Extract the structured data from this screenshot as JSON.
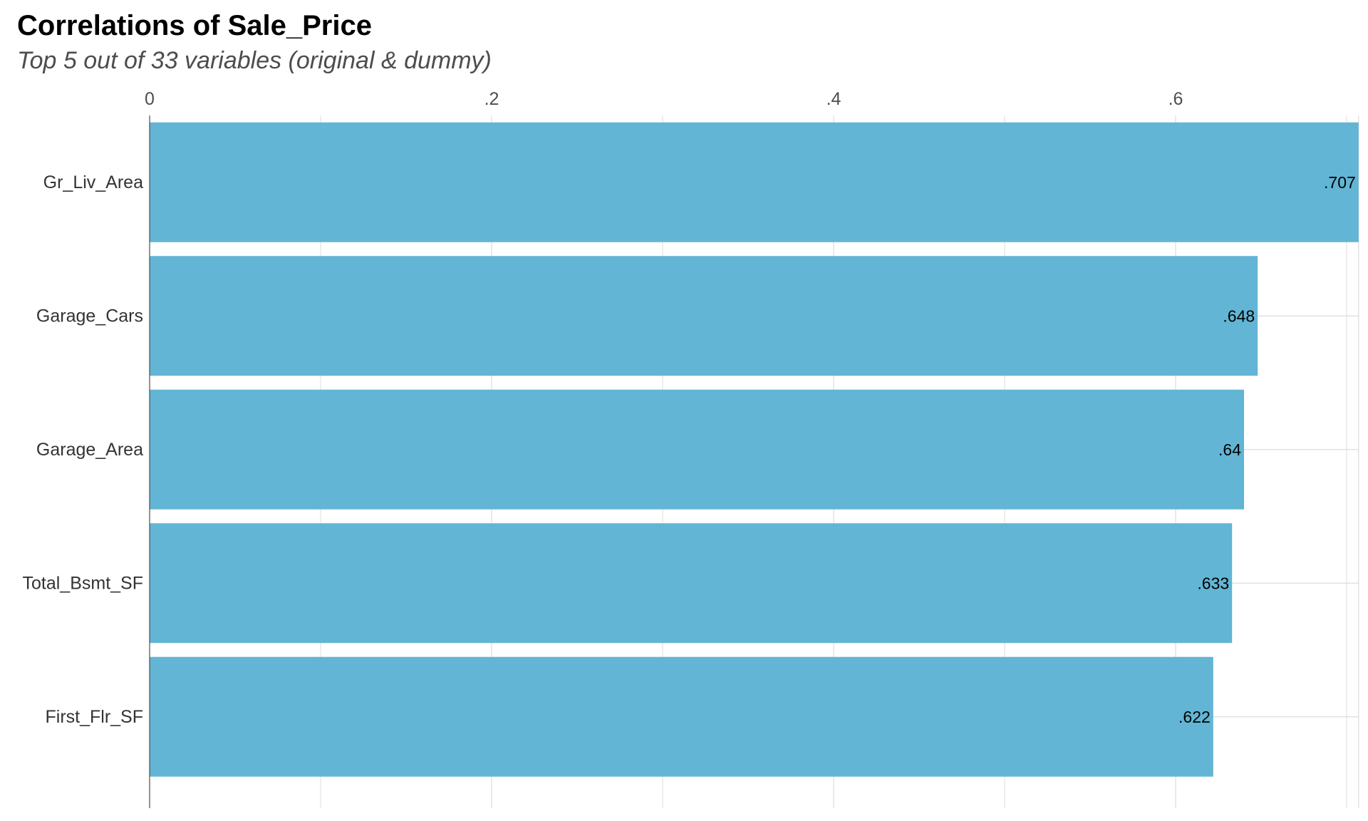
{
  "chart_data": {
    "type": "bar",
    "orientation": "horizontal",
    "title": "Correlations of Sale_Price",
    "subtitle": "Top 5 out of 33 variables (original & dummy)",
    "categories": [
      "Gr_Liv_Area",
      "Garage_Cars",
      "Garage_Area",
      "Total_Bsmt_SF",
      "First_Flr_SF"
    ],
    "values": [
      0.707,
      0.648,
      0.64,
      0.633,
      0.622
    ],
    "value_labels": [
      ".707",
      ".648",
      ".64",
      ".633",
      ".622"
    ],
    "x_ticks": [
      0,
      0.2,
      0.4,
      0.6
    ],
    "x_tick_labels": [
      "0",
      ".2",
      ".4",
      ".6"
    ],
    "xlim": [
      0,
      0.707
    ],
    "x_axis_position": "top",
    "grid": true,
    "legend": "none",
    "colors": {
      "bar": "#62b5d4",
      "grid": "#dcdcdc",
      "axis": "#4d4d4d",
      "background": "#ffffff"
    }
  }
}
